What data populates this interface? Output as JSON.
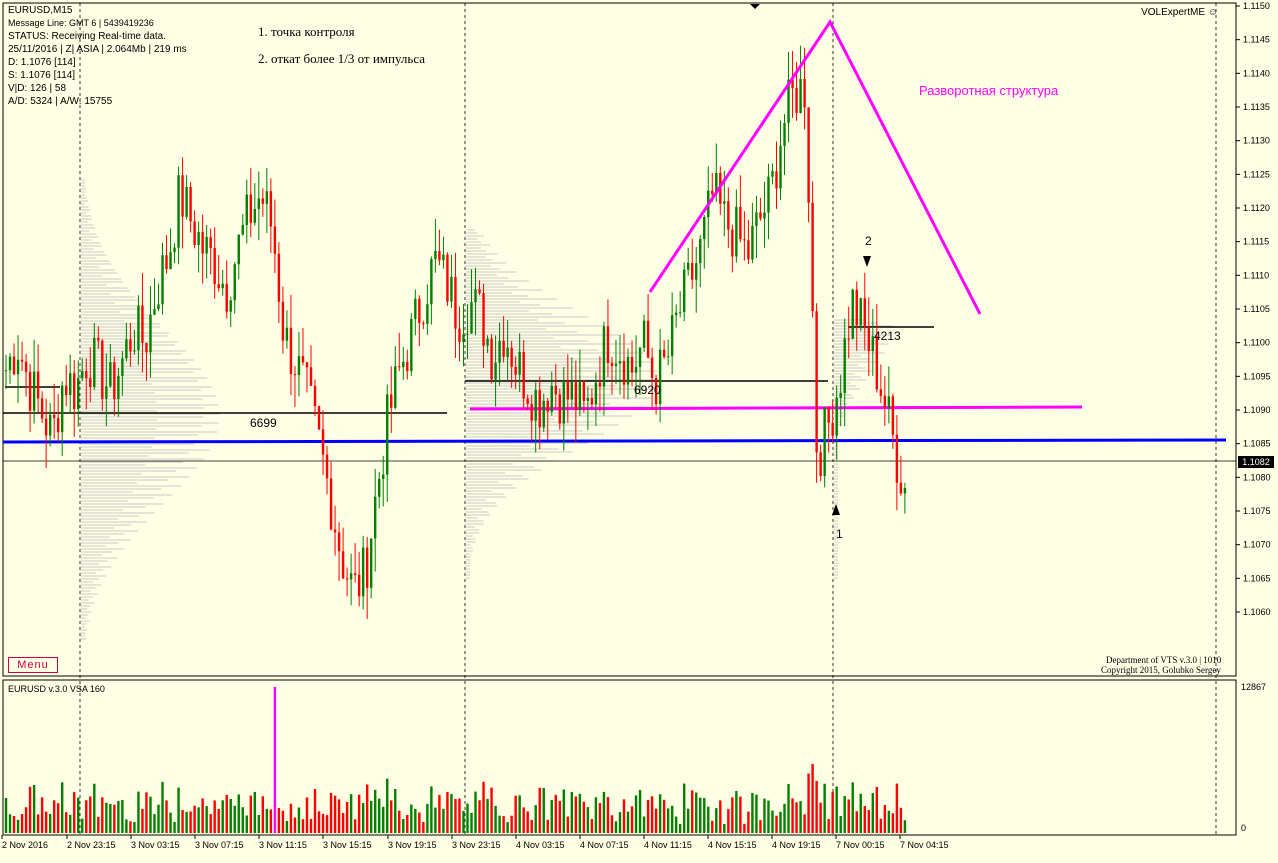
{
  "header": {
    "symbol": "EURUSD,M15",
    "message_line": "Message Line: GMT 6  |  5439419236",
    "status": "STATUS:  Receiving Real-time data.",
    "session": "25/11/2016 | Z| ASIA | 2.064Mb | 219 ms",
    "d_line": "D: 1.1076  [114]",
    "s_line": "S: 1.1076  [114]",
    "vd_line": "V|D: 126 | 58",
    "ad_line": "A/D: 5324 | A/W: 15755"
  },
  "notes": {
    "note1": "1. точка контроля",
    "note2": "2. откат более 1/3 от импульса",
    "structure": "Разворотная структура"
  },
  "expert_label": "VOLExpertME ☺",
  "current_price": "1.1082",
  "menu_label": "Menu",
  "copyright": {
    "line1": "Department of VTS  v.3.0 | 1010",
    "line2": "Copyright 2015, Golubko Sergey"
  },
  "levels": {
    "level_a": "6699",
    "level_b": "6920",
    "level_c": "4213"
  },
  "markers": {
    "m1": "1",
    "m2": "2"
  },
  "volume_panel": {
    "title": "EURUSD v.3.0 VSA 160",
    "max_label": "12867",
    "min_label": "0"
  },
  "price_axis": [
    "1.1150",
    "1.1145",
    "1.1140",
    "1.1135",
    "1.1130",
    "1.1125",
    "1.1120",
    "1.1115",
    "1.1110",
    "1.1105",
    "1.1100",
    "1.1095",
    "1.1090",
    "1.1085",
    "1.1080",
    "1.1075",
    "1.1070",
    "1.1065",
    "1.1060"
  ],
  "time_axis": [
    "2 Nov 2016",
    "2 Nov 23:15",
    "3 Nov 03:15",
    "3 Nov 07:15",
    "3 Nov 11:15",
    "3 Nov 15:15",
    "3 Nov 19:15",
    "3 Nov 23:15",
    "4 Nov 03:15",
    "4 Nov 07:15",
    "4 Nov 11:15",
    "4 Nov 15:15",
    "4 Nov 19:15",
    "7 Nov 00:15",
    "7 Nov 04:15"
  ],
  "colors": {
    "background": "#ffffe6",
    "bull": "#008000",
    "bear": "#ff0000",
    "magenta": "#ff00ff",
    "blue_line": "#0000ff",
    "profile": "#c8c8c8"
  },
  "chart_data": {
    "type": "candlestick",
    "title": "EURUSD,M15",
    "ylim": [
      1.1055,
      1.1152
    ],
    "close_path": [
      1.1096,
      1.11,
      1.1094,
      1.109,
      1.1086,
      1.1095,
      1.1093,
      1.1098,
      1.1096,
      1.1093,
      1.1097,
      1.1102,
      1.11,
      1.1108,
      1.1113,
      1.1122,
      1.1118,
      1.1114,
      1.1112,
      1.1108,
      1.1114,
      1.1119,
      1.1122,
      1.1117,
      1.1101,
      1.1097,
      1.1092,
      1.1085,
      1.1077,
      1.1068,
      1.1063,
      1.1066,
      1.1078,
      1.1089,
      1.1096,
      1.1101,
      1.1107,
      1.1112,
      1.1109,
      1.1104,
      1.1106,
      1.1104,
      1.1098,
      1.1102,
      1.1097,
      1.1094,
      1.1091,
      1.1094,
      1.1092,
      1.1092,
      1.1089,
      1.1096,
      1.1101,
      1.1099,
      1.1096,
      1.11,
      1.1094,
      1.1097,
      1.1104,
      1.1109,
      1.1114,
      1.1122,
      1.1118,
      1.1116,
      1.1113,
      1.1118,
      1.1122,
      1.1132,
      1.1137,
      1.1138,
      1.1083,
      1.1088,
      1.1095,
      1.1106,
      1.1102,
      1.1097,
      1.109,
      1.1082,
      1.1076,
      1.1078,
      1.1081
    ],
    "volume_max": 12867
  }
}
